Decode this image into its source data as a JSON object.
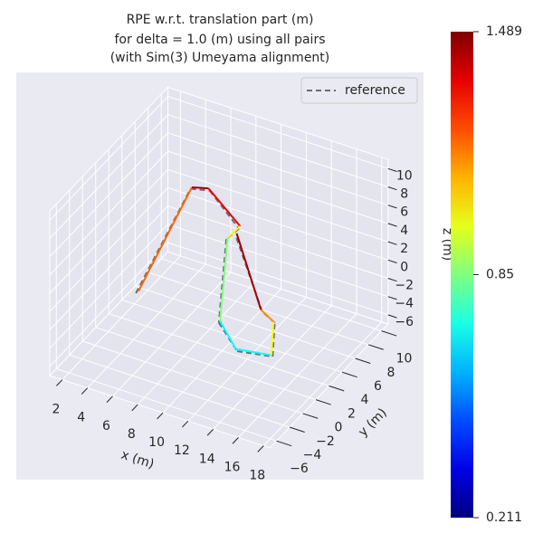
{
  "chart_data": {
    "type": "line3d",
    "title": [
      "RPE w.r.t. translation part (m)",
      "for delta = 1.0 (m) using all pairs",
      "(with Sim(3) Umeyama alignment)"
    ],
    "xlabel": "x (m)",
    "ylabel": "y (m)",
    "zlabel": "z (m)",
    "xlim": [
      1,
      18.5
    ],
    "ylim": [
      -7,
      11
    ],
    "zlim": [
      -7,
      11
    ],
    "xticks": [
      2,
      4,
      6,
      8,
      10,
      12,
      14,
      16,
      18
    ],
    "yticks": [
      {
        "value": -6,
        "label": "−6"
      },
      {
        "value": -4,
        "label": "−4"
      },
      {
        "value": -2,
        "label": "−2"
      },
      0,
      2,
      4,
      6,
      8,
      10
    ],
    "zticks": [
      {
        "value": -6,
        "label": "−6"
      },
      {
        "value": -4,
        "label": "−4"
      },
      {
        "value": -2,
        "label": "−2"
      },
      0,
      2,
      4,
      6,
      8,
      10
    ],
    "grid": true,
    "legend": "upper right",
    "colormap": "jet",
    "series": [
      {
        "name": "reference",
        "color": "#6b6b7a",
        "dashed": true,
        "x": [
          4.2,
          7.5,
          8.5,
          10.3,
          9.3,
          8.7,
          11.2,
          13.5,
          12.1,
          11.1,
          9.5
        ],
        "y": [
          0,
          2,
          3,
          4,
          4,
          4,
          2,
          3,
          6,
          6,
          5
        ],
        "z": [
          -1.8,
          9.6,
          9.1,
          5.0,
          3.4,
          -6.0,
          -6.5,
          -6.8,
          -6.0,
          -5.2,
          3.2
        ]
      },
      {
        "x": [
          4.4,
          7.6,
          8.4,
          10.4,
          9.4,
          8.8,
          11.1,
          13.4,
          12,
          11,
          9.6
        ],
        "y": [
          0,
          2,
          3,
          4,
          4,
          4,
          2,
          3,
          6,
          6,
          5
        ],
        "z": [
          -1.5,
          9.8,
          9.3,
          5.3,
          3.6,
          -5.8,
          -6.3,
          -6.7,
          -5.9,
          -5.05,
          3.4
        ],
        "error": [
          1.2,
          1.45,
          1.35,
          1.0,
          0.85,
          0.7,
          0.7,
          1.0,
          1.15,
          1.45,
          1.45
        ]
      }
    ],
    "colorbar": {
      "lim": [
        0.211,
        1.489
      ],
      "ticks": [
        0.211,
        0.85,
        1.489
      ]
    }
  }
}
